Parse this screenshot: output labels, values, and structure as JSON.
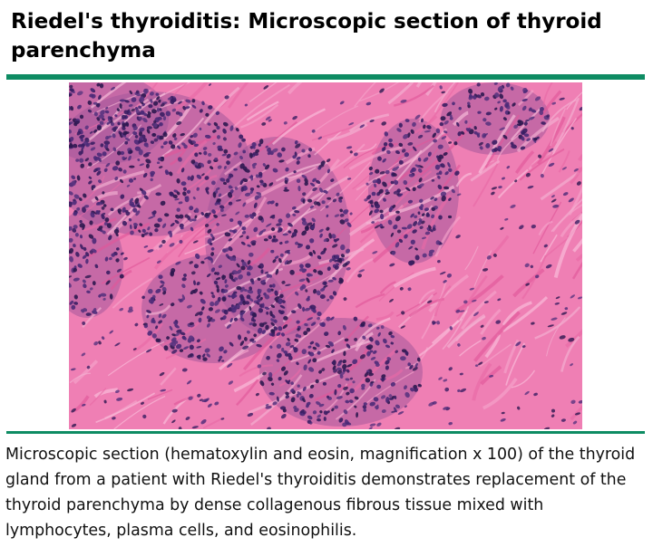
{
  "header": {
    "title": "Riedel's thyroiditis: Microscopic section of thyroid parenchyma",
    "accent_color": "#0e8c63"
  },
  "figure": {
    "image_kind": "histology-micrograph",
    "stain_colors": {
      "collagen": "#ef7fb4",
      "cell_nuclei": "#3a1e63"
    }
  },
  "caption": {
    "text": "Microscopic section (hematoxylin and eosin, magnification x 100) of the thyroid gland from a patient with Riedel's thyroiditis demonstrates replacement of the thyroid parenchyma by dense collagenous fibrous tissue mixed with lymphocytes, plasma cells, and eosinophilis."
  }
}
